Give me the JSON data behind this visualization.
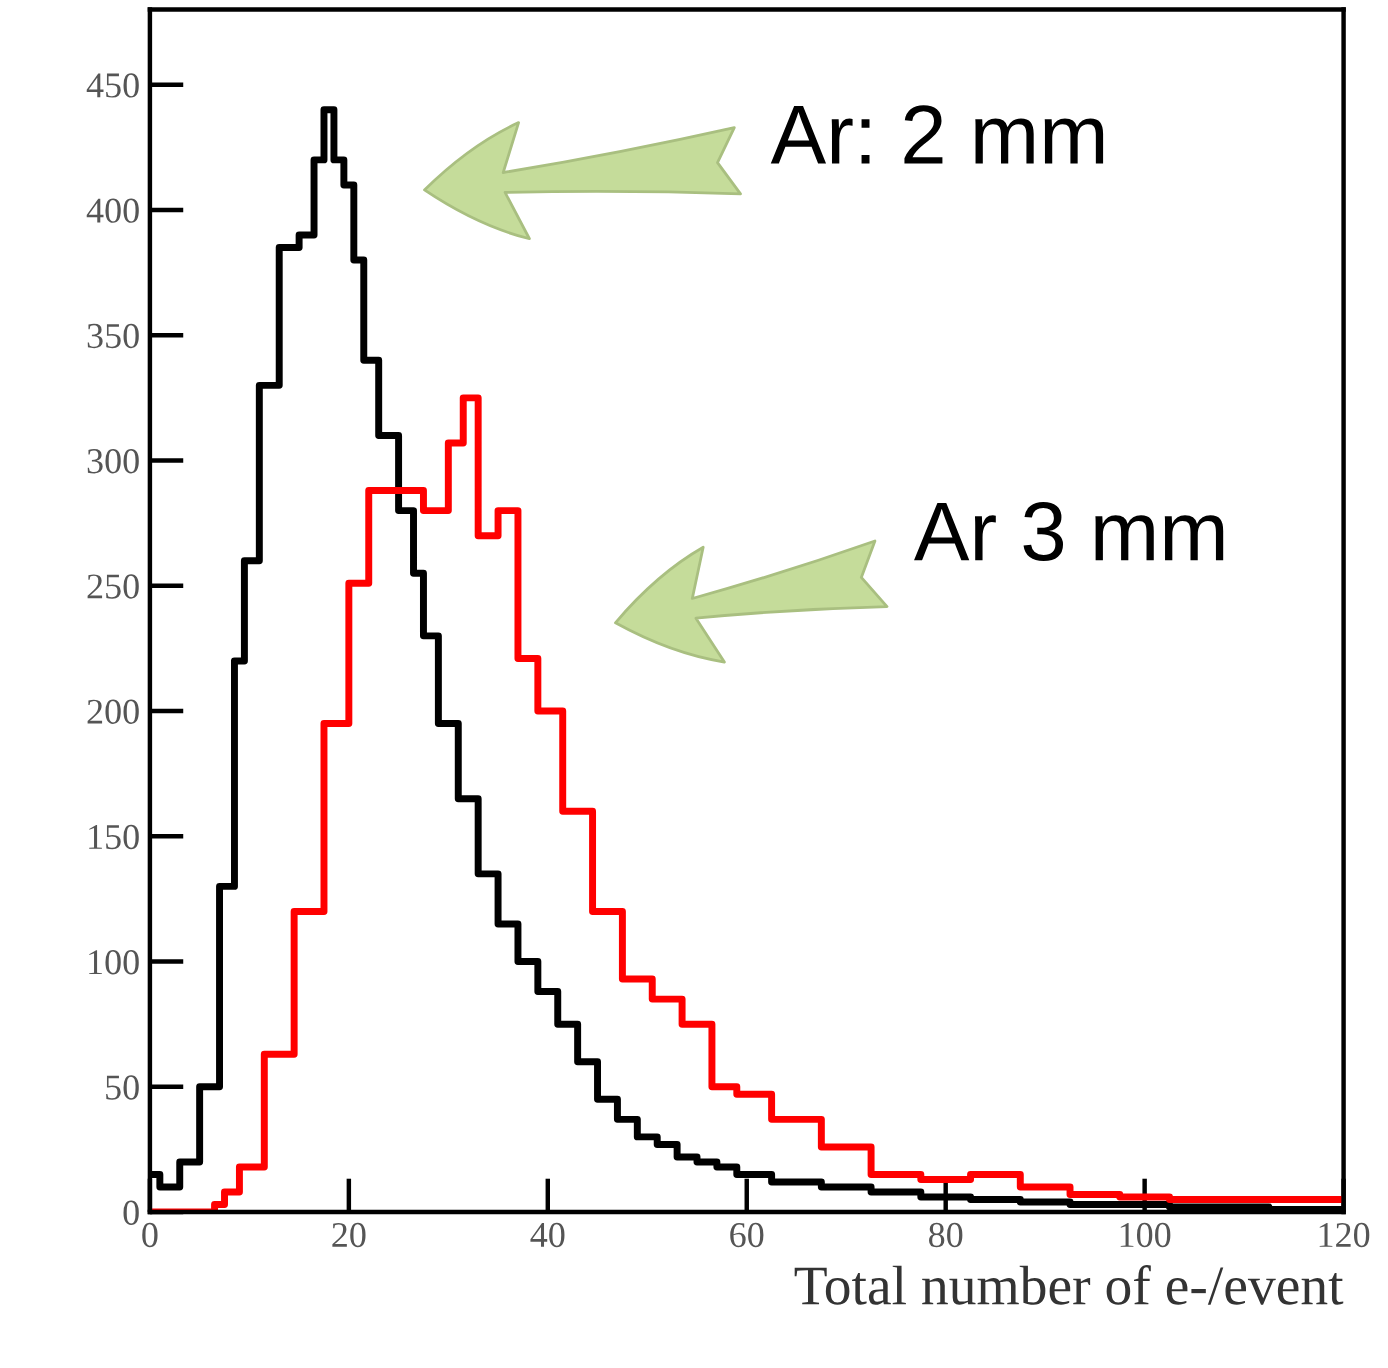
{
  "chart_data": {
    "type": "step",
    "xlabel": "Total number of e-/event",
    "xlim": [
      0,
      120
    ],
    "xticks": [
      0,
      20,
      40,
      60,
      80,
      100,
      120
    ],
    "ylim": [
      0,
      480
    ],
    "yticks": [
      0,
      50,
      100,
      150,
      200,
      250,
      300,
      350,
      400,
      450
    ],
    "grid": false,
    "legend": false,
    "annotations": [
      "Ar: 2 mm",
      "Ar 3 mm"
    ],
    "series": [
      {
        "color": "#000000",
        "x": [
          0,
          2,
          4,
          6,
          8,
          9,
          10,
          12,
          14,
          16,
          17,
          18,
          19,
          20,
          21,
          22,
          24,
          26,
          27,
          28,
          30,
          32,
          34,
          36,
          38,
          40,
          42,
          44,
          46,
          48,
          50,
          52,
          54,
          56,
          58,
          60,
          65,
          70,
          75,
          80,
          85,
          90,
          95,
          100,
          105,
          110,
          115,
          120
        ],
        "values": [
          15,
          10,
          20,
          50,
          130,
          220,
          260,
          330,
          385,
          390,
          420,
          440,
          420,
          410,
          380,
          340,
          310,
          280,
          255,
          230,
          195,
          165,
          135,
          115,
          100,
          88,
          75,
          60,
          45,
          37,
          30,
          27,
          22,
          20,
          18,
          15,
          12,
          10,
          8,
          6,
          5,
          4,
          3,
          3,
          2,
          2,
          1,
          1
        ]
      },
      {
        "color": "#ff0000",
        "x": [
          0,
          2,
          4,
          6,
          7,
          8,
          10,
          13,
          16,
          19,
          21,
          23,
          26,
          29,
          31,
          32,
          34,
          36,
          38,
          40,
          43,
          46,
          49,
          52,
          55,
          58,
          60,
          65,
          70,
          75,
          80,
          85,
          90,
          95,
          100,
          105,
          110,
          115,
          120
        ],
        "values": [
          0,
          0,
          0,
          0,
          3,
          8,
          18,
          63,
          120,
          195,
          251,
          288,
          288,
          280,
          307,
          325,
          270,
          280,
          221,
          200,
          160,
          120,
          93,
          85,
          75,
          50,
          47,
          37,
          26,
          15,
          13,
          15,
          10,
          7,
          6,
          5,
          5,
          5,
          5
        ]
      }
    ]
  }
}
